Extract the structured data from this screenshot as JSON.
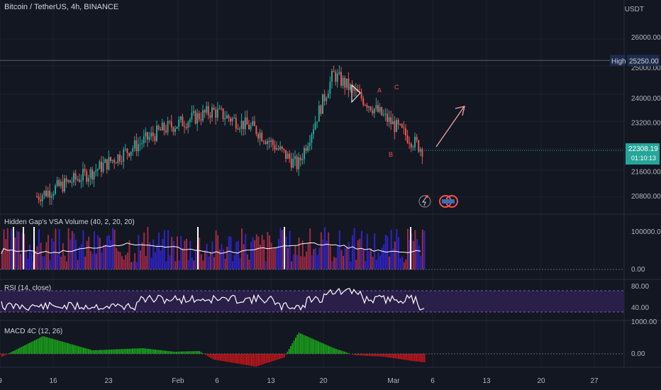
{
  "header": {
    "title": "Bitcoin / TetherUS, 4h, BINANCE"
  },
  "price_axis": {
    "unit": "USDT",
    "ticks": [
      "26000.00",
      "24000.00",
      "23200.00",
      "21600.00",
      "20800.00"
    ],
    "high_label": "High",
    "high_value": "25250.00",
    "last_price": "22308.19",
    "countdown": "01:10:13",
    "price_zero_tick": "25000.00"
  },
  "panes": {
    "volume": {
      "label": "Hidden Gap's VSA Volume (40, 2, 20, 20)",
      "ticks": [
        "100000.00",
        "0.00"
      ]
    },
    "rsi": {
      "label": "RSI (14, close)",
      "ticks": [
        "80.00",
        "40.00"
      ]
    },
    "macd": {
      "label": "MACD 4C (12, 26)",
      "ticks": [
        "1000.00",
        "0.00"
      ]
    }
  },
  "annotations": {
    "wave_a": "A",
    "wave_b": "B",
    "wave_c": "C"
  },
  "time_axis": {
    "labels": [
      "9",
      "16",
      "23",
      "Feb",
      "6",
      "13",
      "20",
      "Mar",
      "6",
      "13",
      "20",
      "27"
    ]
  },
  "colors": {
    "up": "#26a69a",
    "down": "#ef5350",
    "volume_up": "#2f23c7",
    "volume_down": "#9e2a45",
    "rsi_band": "#2a1f49",
    "macd_up": "#1aa61a",
    "macd_down": "#c4151b",
    "arrow": "#f2a6a0"
  },
  "chart_data": {
    "type": "line",
    "xlabel": "",
    "ylabel": "",
    "x": [
      "9",
      "16",
      "23",
      "Feb",
      "6",
      "13",
      "20",
      "Mar"
    ],
    "series": [
      {
        "values": [
          20800,
          21600,
          23000,
          23600,
          23000,
          21800,
          24800,
          22300
        ]
      }
    ],
    "ylim": [
      20500,
      26300
    ],
    "grid": true
  }
}
